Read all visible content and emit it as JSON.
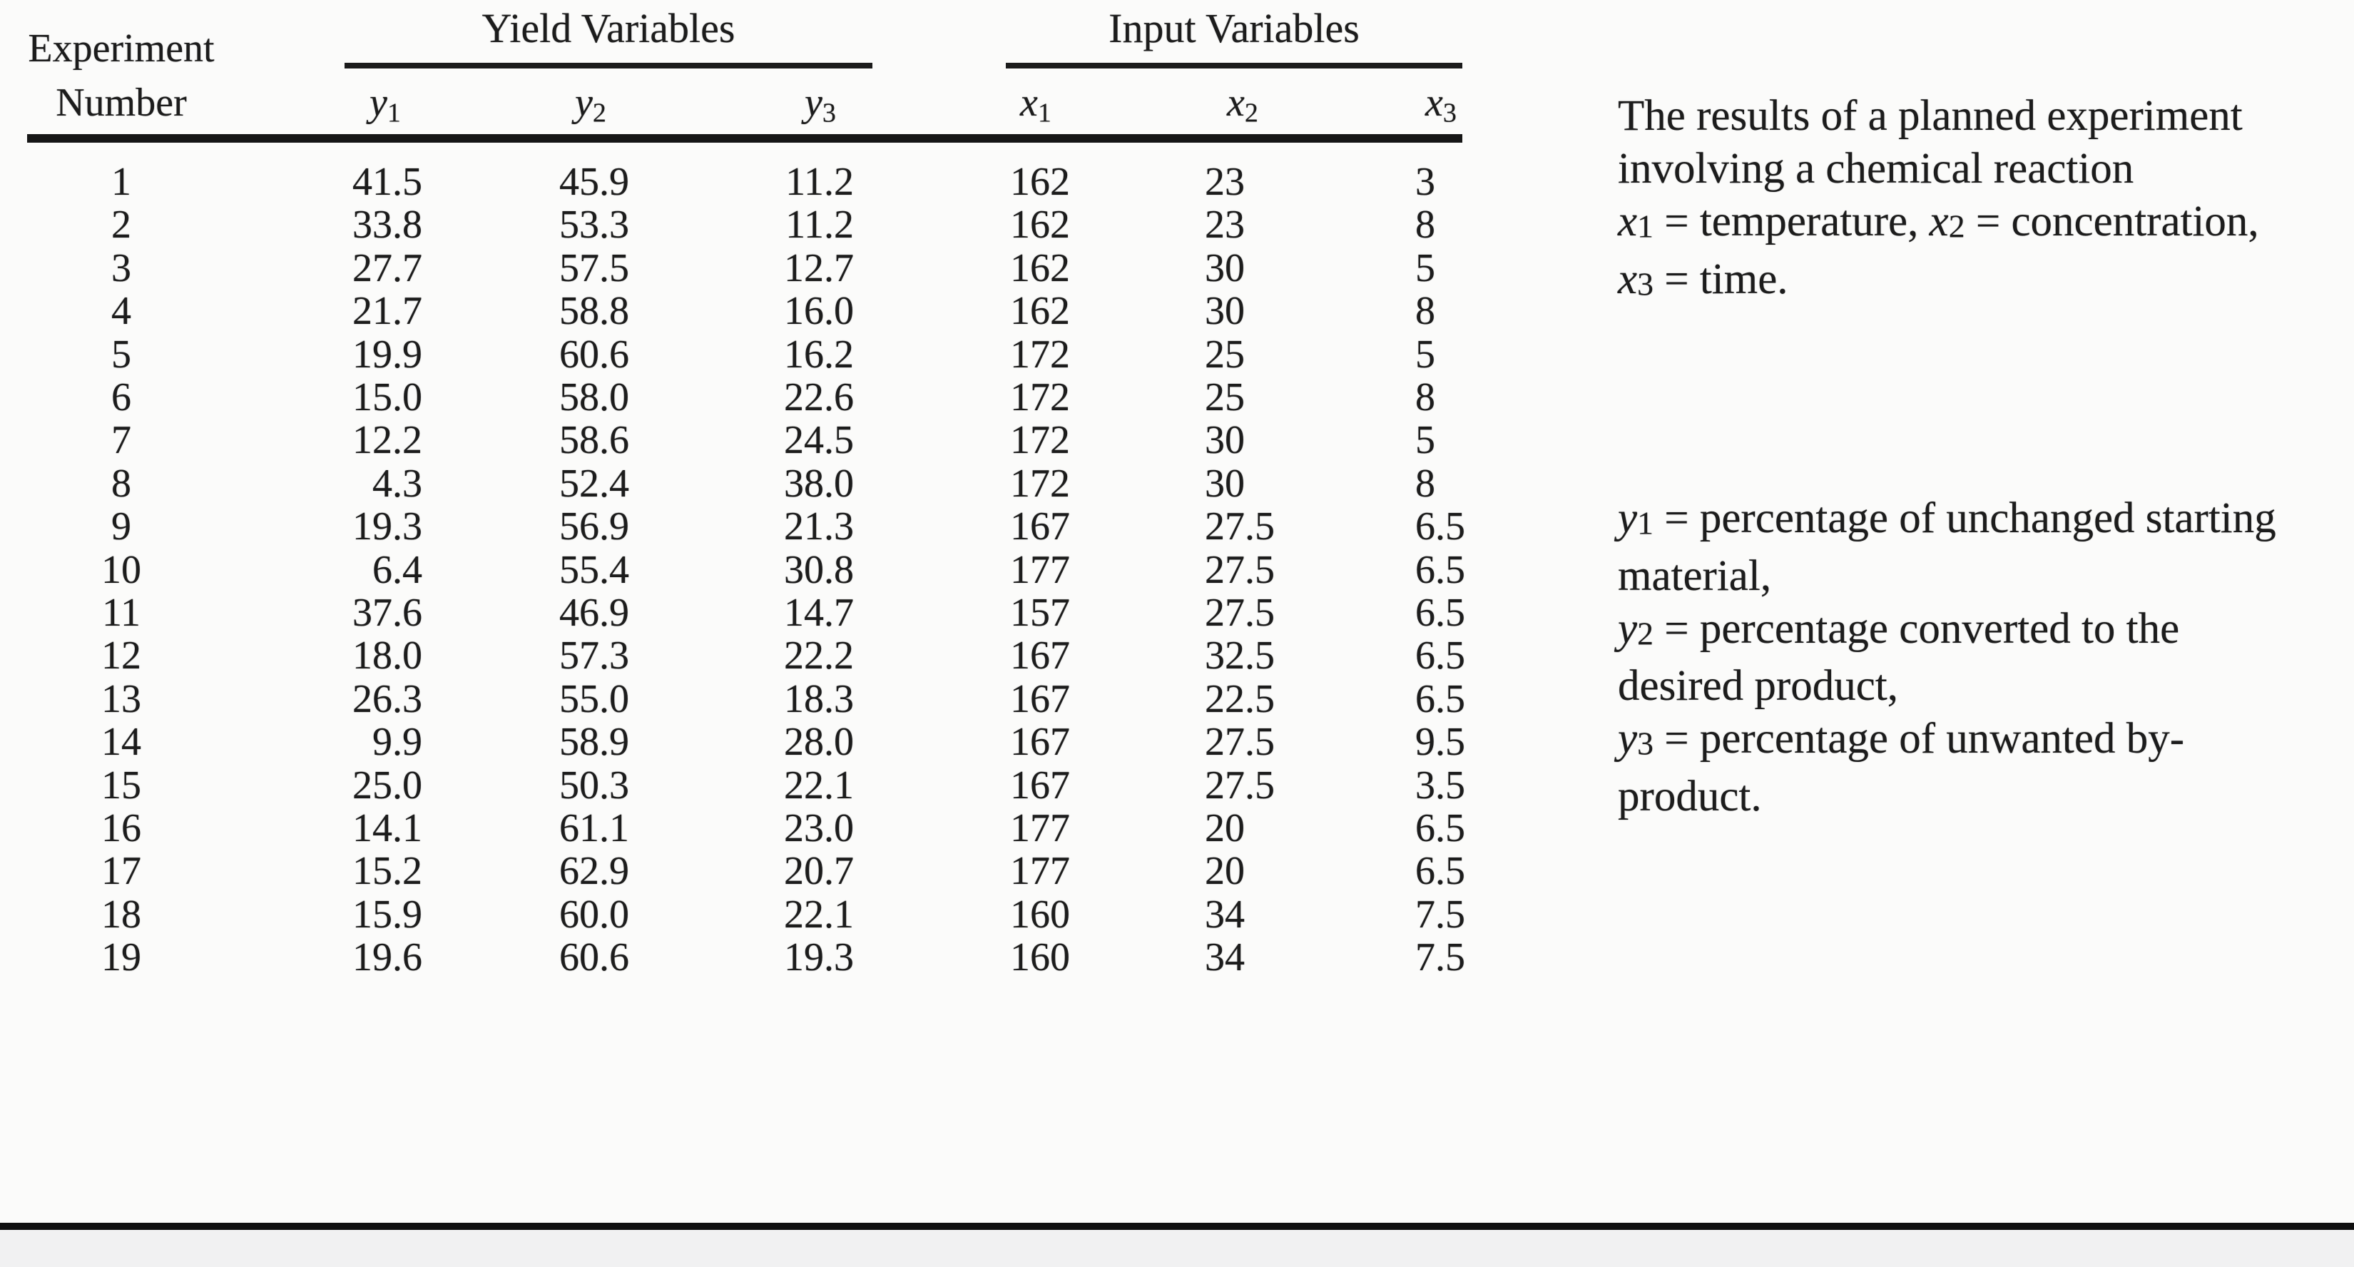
{
  "page": {
    "background": "#fbfbfa",
    "ink": "#1c1c1c",
    "footer_bar_color": "#f1f1f2"
  },
  "table": {
    "stub": {
      "line1": "Experiment",
      "line2": "Number"
    },
    "groups": [
      {
        "label": "Yield Variables"
      },
      {
        "label": "Input Variables"
      }
    ],
    "columns": [
      {
        "base": "y",
        "sub": "1"
      },
      {
        "base": "y",
        "sub": "2"
      },
      {
        "base": "y",
        "sub": "3"
      },
      {
        "base": "x",
        "sub": "1"
      },
      {
        "base": "x",
        "sub": "2"
      },
      {
        "base": "x",
        "sub": "3"
      }
    ],
    "rows": [
      [
        "1",
        "41.5",
        "45.9",
        "11.2",
        "162",
        "23",
        "3"
      ],
      [
        "2",
        "33.8",
        "53.3",
        "11.2",
        "162",
        "23",
        "8"
      ],
      [
        "3",
        "27.7",
        "57.5",
        "12.7",
        "162",
        "30",
        "5"
      ],
      [
        "4",
        "21.7",
        "58.8",
        "16.0",
        "162",
        "30",
        "8"
      ],
      [
        "5",
        "19.9",
        "60.6",
        "16.2",
        "172",
        "25",
        "5"
      ],
      [
        "6",
        "15.0",
        "58.0",
        "22.6",
        "172",
        "25",
        "8"
      ],
      [
        "7",
        "12.2",
        "58.6",
        "24.5",
        "172",
        "30",
        "5"
      ],
      [
        "8",
        "4.3",
        "52.4",
        "38.0",
        "172",
        "30",
        "8"
      ],
      [
        "9",
        "19.3",
        "56.9",
        "21.3",
        "167",
        "27.5",
        "6.5"
      ],
      [
        "10",
        "6.4",
        "55.4",
        "30.8",
        "177",
        "27.5",
        "6.5"
      ],
      [
        "11",
        "37.6",
        "46.9",
        "14.7",
        "157",
        "27.5",
        "6.5"
      ],
      [
        "12",
        "18.0",
        "57.3",
        "22.2",
        "167",
        "32.5",
        "6.5"
      ],
      [
        "13",
        "26.3",
        "55.0",
        "18.3",
        "167",
        "22.5",
        "6.5"
      ],
      [
        "14",
        "9.9",
        "58.9",
        "28.0",
        "167",
        "27.5",
        "9.5"
      ],
      [
        "15",
        "25.0",
        "50.3",
        "22.1",
        "167",
        "27.5",
        "3.5"
      ],
      [
        "16",
        "14.1",
        "61.1",
        "23.0",
        "177",
        "20",
        "6.5"
      ],
      [
        "17",
        "15.2",
        "62.9",
        "20.7",
        "177",
        "20",
        "6.5"
      ],
      [
        "18",
        "15.9",
        "60.0",
        "22.1",
        "160",
        "34",
        "7.5"
      ],
      [
        "19",
        "19.6",
        "60.6",
        "19.3",
        "160",
        "34",
        "7.5"
      ]
    ]
  },
  "notes": [
    {
      "lines": [
        [
          {
            "t": "The results of a planned experiment"
          }
        ],
        [
          {
            "t": "involving a chemical reaction"
          }
        ],
        [
          {
            "v": "x",
            "s": "1"
          },
          {
            "t": " = temperature, "
          },
          {
            "v": "x",
            "s": "2"
          },
          {
            "t": " = concentration,"
          }
        ],
        [
          {
            "v": "x",
            "s": "3"
          },
          {
            "t": " = time."
          }
        ]
      ]
    },
    {
      "lines": [
        [
          {
            "v": "y",
            "s": "1"
          },
          {
            "t": " = percentage of unchanged starting"
          }
        ],
        [
          {
            "t": "material,"
          }
        ],
        [
          {
            "v": "y",
            "s": "2"
          },
          {
            "t": " = percentage converted to the"
          }
        ],
        [
          {
            "t": "desired product,"
          }
        ],
        [
          {
            "v": "y",
            "s": "3"
          },
          {
            "t": " = percentage of unwanted by-"
          }
        ],
        [
          {
            "t": "product."
          }
        ]
      ]
    }
  ]
}
